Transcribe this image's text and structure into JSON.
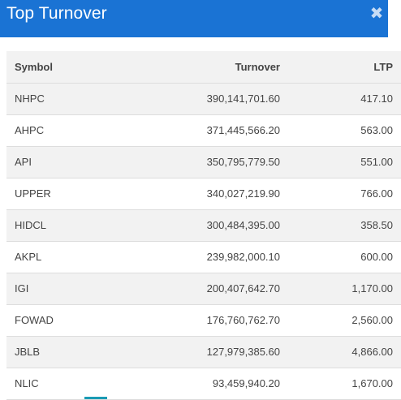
{
  "header": {
    "title": "Top Turnover",
    "close_icon": "close-icon"
  },
  "table": {
    "columns": [
      "Symbol",
      "Turnover",
      "LTP"
    ],
    "rows": [
      {
        "symbol": "NHPC",
        "turnover": "390,141,701.60",
        "ltp": "417.10"
      },
      {
        "symbol": "AHPC",
        "turnover": "371,445,566.20",
        "ltp": "563.00"
      },
      {
        "symbol": "API",
        "turnover": "350,795,779.50",
        "ltp": "551.00"
      },
      {
        "symbol": "UPPER",
        "turnover": "340,027,219.90",
        "ltp": "766.00"
      },
      {
        "symbol": "HIDCL",
        "turnover": "300,484,395.00",
        "ltp": "358.50"
      },
      {
        "symbol": "AKPL",
        "turnover": "239,982,000.10",
        "ltp": "600.00"
      },
      {
        "symbol": "IGI",
        "turnover": "200,407,642.70",
        "ltp": "1,170.00"
      },
      {
        "symbol": "FOWAD",
        "turnover": "176,760,762.70",
        "ltp": "2,560.00"
      },
      {
        "symbol": "JBLB",
        "turnover": "127,979,385.60",
        "ltp": "4,866.00"
      },
      {
        "symbol": "NLIC",
        "turnover": "93,459,940.20",
        "ltp": "1,670.00"
      }
    ]
  },
  "colors": {
    "header_bg": "#1a73d4",
    "row_alt": "#f2f2f2",
    "accent": "#1a9bb4"
  }
}
